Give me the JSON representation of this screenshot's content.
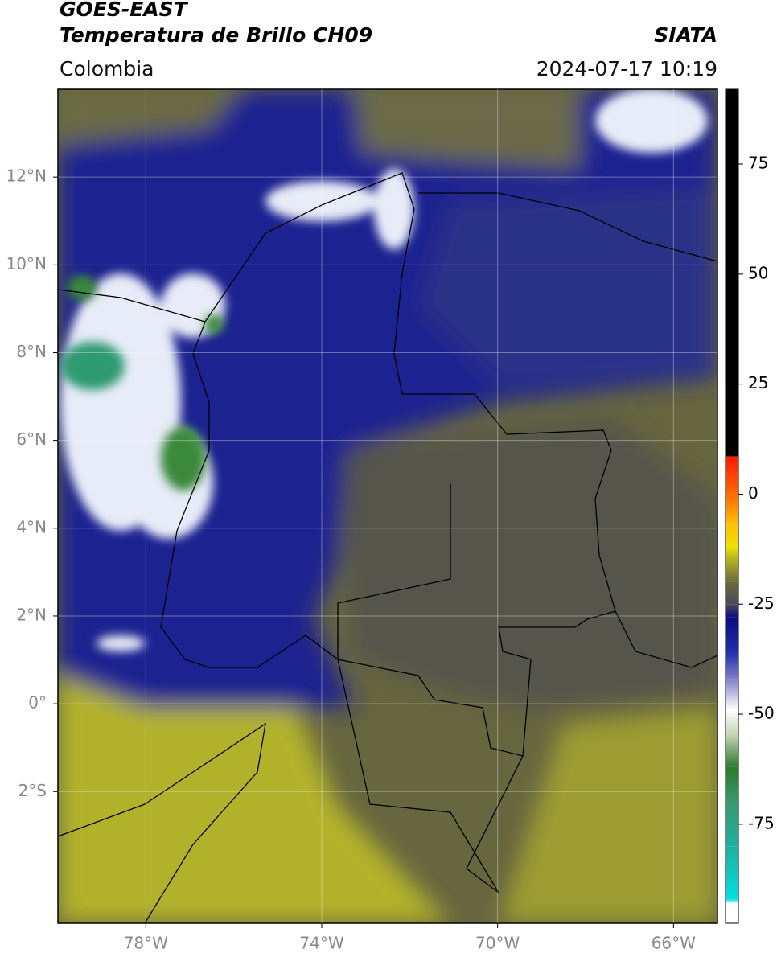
{
  "header": {
    "title": "GOES-EAST",
    "subtitle": "Temperatura de Brillo CH09",
    "source": "SIATA",
    "region": "Colombia",
    "timestamp": "2024-07-17 10:19"
  },
  "map": {
    "xlim": [
      -80,
      -65
    ],
    "ylim": [
      -5,
      14
    ],
    "xticks": [
      {
        "value": -78,
        "label": "78°W"
      },
      {
        "value": -74,
        "label": "74°W"
      },
      {
        "value": -70,
        "label": "70°W"
      },
      {
        "value": -66,
        "label": "66°W"
      }
    ],
    "yticks": [
      {
        "value": 12,
        "label": "12°N"
      },
      {
        "value": 10,
        "label": "10°N"
      },
      {
        "value": 8,
        "label": "8°N"
      },
      {
        "value": 6,
        "label": "6°N"
      },
      {
        "value": 4,
        "label": "4°N"
      },
      {
        "value": 2,
        "label": "2°N"
      },
      {
        "value": 0,
        "label": "0°"
      },
      {
        "value": -2,
        "label": "2°S"
      }
    ],
    "grid": true
  },
  "colorbar": {
    "lim": [
      -97.5,
      92
    ],
    "ticks": [
      75,
      50,
      25,
      0,
      -25,
      -50,
      -75
    ],
    "stops": [
      {
        "value": 92,
        "color": "#000000"
      },
      {
        "value": 8.6,
        "color": "#000000"
      },
      {
        "value": 8.5,
        "color": "#ff1a00"
      },
      {
        "value": 0,
        "color": "#ff6a00"
      },
      {
        "value": -7,
        "color": "#ffc000"
      },
      {
        "value": -12,
        "color": "#f0e000"
      },
      {
        "value": -15,
        "color": "#b0b020"
      },
      {
        "value": -20,
        "color": "#6b6b3a"
      },
      {
        "value": -25,
        "color": "#4a4a5a"
      },
      {
        "value": -28,
        "color": "#0a0a80"
      },
      {
        "value": -36,
        "color": "#2030b0"
      },
      {
        "value": -42,
        "color": "#8080c8"
      },
      {
        "value": -49,
        "color": "#ffffff"
      },
      {
        "value": -55,
        "color": "#c0d0b0"
      },
      {
        "value": -62,
        "color": "#2a7a2a"
      },
      {
        "value": -70,
        "color": "#3a9a70"
      },
      {
        "value": -80,
        "color": "#20b0a0"
      },
      {
        "value": -92,
        "color": "#00e0e0"
      },
      {
        "value": -93,
        "color": "#ffffff"
      },
      {
        "value": -97.5,
        "color": "#ffffff"
      }
    ]
  }
}
